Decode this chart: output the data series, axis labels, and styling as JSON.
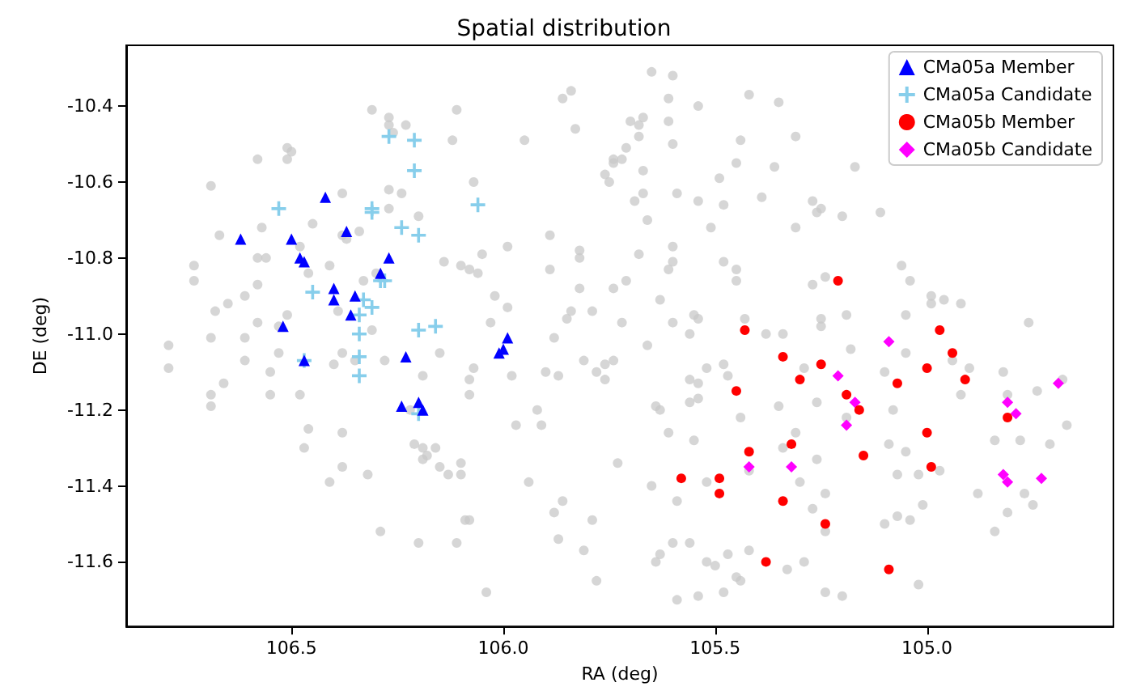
{
  "chart_data": {
    "type": "scatter",
    "title": "Spatial distribution",
    "xlabel": "RA (deg)",
    "ylabel": "DE (deg)",
    "xlim": [
      106.89,
      104.56
    ],
    "ylim": [
      -11.77,
      -10.24
    ],
    "xticks": [
      106.5,
      {
        "value": 106,
        "label": "106.0"
      },
      105.5,
      {
        "value": 105,
        "label": "105.0"
      }
    ],
    "yticks": [
      -10.4,
      -10.6,
      -10.8,
      {
        "value": -11,
        "label": "-11.0"
      },
      -11.2,
      -11.4,
      -11.6
    ],
    "grid": false,
    "legend": "top right",
    "series": [
      {
        "color": "#c8c8c8",
        "marker": "circle",
        "x": [
          106.31,
          106.27,
          106.27,
          106.26,
          106.23,
          106.11,
          106.12,
          106.51,
          106.5,
          106.58,
          106.51,
          106.69,
          106.38,
          106.27,
          106.24,
          106.27,
          106.2,
          106.07,
          106.45,
          106.57,
          106.67,
          106.38,
          106.34,
          106.37,
          106.48,
          106.58,
          106.56,
          106.73,
          106.73,
          106.41,
          106.46,
          106.33,
          106.3,
          106.14,
          106.1,
          106.08,
          106.58,
          106.61,
          106.65,
          106.68,
          106.51,
          106.58,
          106.53,
          106.39,
          106.31,
          106.69,
          106.61,
          106.79,
          106.79,
          106.61,
          106.53,
          106.55,
          106.66,
          106.69,
          106.69,
          106.55,
          106.48,
          106.4,
          106.38,
          106.35,
          106.28,
          106.19,
          106.15,
          106.07,
          106.08,
          106.08,
          106.46,
          106.47,
          106.38,
          106.38,
          106.41,
          106.32,
          106.22,
          106.21,
          106.19,
          106.16,
          106.18,
          106.19,
          106.15,
          106.13,
          106.1,
          106.1,
          106.09,
          106.08,
          106.29,
          106.2,
          106.11,
          105.65,
          105.6,
          105.86,
          105.84,
          105.61,
          105.54,
          105.42,
          105.35,
          105.83,
          105.7,
          105.67,
          105.68,
          105.61,
          105.68,
          105.6,
          105.95,
          105.44,
          105.31,
          105.71,
          105.74,
          105.72,
          105.74,
          105.76,
          105.75,
          105.67,
          105.49,
          105.45,
          105.36,
          105.69,
          105.67,
          105.59,
          105.54,
          105.48,
          105.39,
          105.27,
          105.66,
          105.51,
          105.31,
          105.89,
          105.99,
          106.05,
          105.82,
          105.82,
          105.68,
          105.6,
          105.6,
          105.48,
          105.45,
          105.45,
          105.27,
          105.89,
          106.06,
          105.61,
          105.71,
          105.82,
          105.74,
          106.02,
          105.63,
          105.99,
          105.84,
          105.85,
          105.79,
          105.72,
          105.6,
          105.55,
          105.54,
          105.43,
          105.34,
          106.03,
          105.56,
          105.88,
          105.66,
          105.98,
          105.9,
          105.87,
          105.81,
          105.78,
          105.76,
          105.74,
          105.76,
          105.97,
          105.92,
          105.91,
          105.73,
          105.94,
          105.64,
          105.63,
          105.61,
          105.55,
          105.52,
          105.48,
          105.47,
          105.56,
          105.54,
          105.56,
          105.54,
          105.44,
          105.35,
          105.31,
          105.34,
          105.42,
          105.52,
          105.59,
          105.65,
          105.3,
          105.27,
          105.88,
          105.86,
          105.79,
          105.87,
          105.81,
          105.78,
          106.04,
          105.6,
          105.56,
          105.64,
          105.63,
          105.52,
          105.5,
          105.47,
          105.42,
          105.45,
          105.44,
          105.33,
          105.29,
          105.59,
          105.54,
          105.48,
          105.38,
          105.29,
          105.17,
          105.25,
          105.26,
          105.2,
          105.11,
          105.06,
          105.04,
          105.24,
          104.99,
          104.99,
          104.96,
          104.92,
          105.19,
          105.05,
          105.25,
          105.25,
          104.76,
          105.18,
          105.05,
          104.94,
          104.9,
          105.1,
          104.82,
          104.74,
          104.68,
          104.92,
          104.81,
          105.26,
          105.19,
          105.08,
          104.67,
          104.84,
          104.78,
          104.71,
          105.09,
          105.05,
          105.26,
          105.07,
          105.02,
          104.97,
          104.88,
          104.77,
          104.75,
          105.24,
          105.01,
          105.07,
          105.04,
          105.1,
          104.81,
          104.84,
          105.24,
          105.24,
          105.2,
          105.02
        ],
        "values": [
          -10.41,
          -10.43,
          -10.45,
          -10.47,
          -10.45,
          -10.41,
          -10.49,
          -10.51,
          -10.52,
          -10.54,
          -10.54,
          -10.61,
          -10.63,
          -10.62,
          -10.63,
          -10.67,
          -10.69,
          -10.6,
          -10.71,
          -10.72,
          -10.74,
          -10.74,
          -10.73,
          -10.75,
          -10.77,
          -10.8,
          -10.8,
          -10.82,
          -10.86,
          -10.82,
          -10.84,
          -10.86,
          -10.84,
          -10.81,
          -10.82,
          -10.83,
          -10.87,
          -10.9,
          -10.92,
          -10.94,
          -10.95,
          -10.97,
          -10.98,
          -10.94,
          -10.99,
          -11.01,
          -11.01,
          -11.03,
          -11.09,
          -11.07,
          -11.05,
          -11.1,
          -11.13,
          -11.16,
          -11.19,
          -11.16,
          -11.16,
          -11.08,
          -11.05,
          -11.07,
          -11.07,
          -11.11,
          -11.05,
          -11.09,
          -11.12,
          -11.16,
          -11.25,
          -11.3,
          -11.26,
          -11.35,
          -11.39,
          -11.37,
          -11.2,
          -11.29,
          -11.3,
          -11.3,
          -11.32,
          -11.33,
          -11.35,
          -11.37,
          -11.34,
          -11.37,
          -11.49,
          -11.49,
          -11.52,
          -11.55,
          -11.55,
          -10.31,
          -10.32,
          -10.38,
          -10.36,
          -10.38,
          -10.4,
          -10.37,
          -10.39,
          -10.46,
          -10.44,
          -10.43,
          -10.45,
          -10.44,
          -10.48,
          -10.5,
          -10.49,
          -10.49,
          -10.48,
          -10.51,
          -10.54,
          -10.54,
          -10.55,
          -10.58,
          -10.6,
          -10.57,
          -10.59,
          -10.55,
          -10.56,
          -10.65,
          -10.63,
          -10.63,
          -10.65,
          -10.66,
          -10.64,
          -10.65,
          -10.7,
          -10.72,
          -10.72,
          -10.74,
          -10.77,
          -10.79,
          -10.78,
          -10.8,
          -10.79,
          -10.77,
          -10.81,
          -10.81,
          -10.83,
          -10.86,
          -10.87,
          -10.83,
          -10.84,
          -10.83,
          -10.86,
          -10.88,
          -10.88,
          -10.9,
          -10.91,
          -10.93,
          -10.94,
          -10.96,
          -10.94,
          -10.97,
          -10.97,
          -10.95,
          -10.96,
          -10.96,
          -11.0,
          -10.97,
          -11.0,
          -11.01,
          -11.03,
          -11.11,
          -11.1,
          -11.11,
          -11.07,
          -11.1,
          -11.08,
          -11.07,
          -11.12,
          -11.24,
          -11.2,
          -11.24,
          -11.34,
          -11.39,
          -11.19,
          -11.2,
          -11.26,
          -11.28,
          -11.09,
          -11.08,
          -11.11,
          -11.12,
          -11.13,
          -11.18,
          -11.17,
          -11.22,
          -11.19,
          -11.26,
          -11.3,
          -11.36,
          -11.39,
          -11.44,
          -11.4,
          -11.39,
          -11.46,
          -11.47,
          -11.44,
          -11.49,
          -11.54,
          -11.57,
          -11.65,
          -11.68,
          -11.55,
          -11.55,
          -11.6,
          -11.58,
          -11.6,
          -11.61,
          -11.58,
          -11.57,
          -11.64,
          -11.65,
          -11.62,
          -11.6,
          -11.7,
          -11.69,
          -11.68,
          -11.0,
          -11.09,
          -10.56,
          -10.67,
          -10.68,
          -10.69,
          -10.68,
          -10.82,
          -10.86,
          -10.85,
          -10.9,
          -10.92,
          -10.91,
          -10.92,
          -10.95,
          -10.95,
          -10.96,
          -10.98,
          -10.97,
          -11.04,
          -11.05,
          -11.07,
          -11.09,
          -11.1,
          -11.1,
          -11.15,
          -11.12,
          -11.16,
          -11.16,
          -11.18,
          -11.22,
          -11.2,
          -11.24,
          -11.28,
          -11.28,
          -11.29,
          -11.29,
          -11.31,
          -11.33,
          -11.37,
          -11.37,
          -11.36,
          -11.42,
          -11.42,
          -11.45,
          -11.42,
          -11.45,
          -11.48,
          -11.49,
          -11.5,
          -11.47,
          -11.52,
          -11.52,
          -11.68,
          -11.69,
          -11.66
        ]
      },
      {
        "name": "CMa05a Member",
        "color": "#0000ff",
        "marker": "triangle",
        "x": [
          106.62,
          106.5,
          106.48,
          106.47,
          106.42,
          106.37,
          106.4,
          106.4,
          106.35,
          106.36,
          106.27,
          106.29,
          106.52,
          106.47,
          106.23,
          106.2,
          106.24,
          106.19,
          105.99,
          106.0,
          106.01
        ],
        "values": [
          -10.75,
          -10.75,
          -10.8,
          -10.81,
          -10.64,
          -10.73,
          -10.91,
          -10.88,
          -10.9,
          -10.95,
          -10.8,
          -10.84,
          -10.98,
          -11.07,
          -11.06,
          -11.18,
          -11.19,
          -11.2,
          -11.01,
          -11.04,
          -11.05
        ]
      },
      {
        "name": "CMa05a Candidate",
        "color": "#87ceeb",
        "marker": "cross",
        "x": [
          106.53,
          106.27,
          106.21,
          106.21,
          106.31,
          106.31,
          106.24,
          106.2,
          106.06,
          106.45,
          106.33,
          106.28,
          106.29,
          106.31,
          106.34,
          106.34,
          106.2,
          106.16,
          106.47,
          106.34,
          106.34,
          106.2
        ],
        "values": [
          -10.67,
          -10.48,
          -10.49,
          -10.57,
          -10.67,
          -10.68,
          -10.72,
          -10.74,
          -10.66,
          -10.89,
          -10.91,
          -10.86,
          -10.86,
          -10.93,
          -10.95,
          -11.0,
          -10.99,
          -10.98,
          -11.07,
          -11.06,
          -11.11,
          -11.21
        ]
      },
      {
        "name": "CMa05b Member",
        "color": "#ff0000",
        "marker": "circle",
        "x": [
          105.43,
          105.21,
          104.97,
          105.34,
          105.3,
          105.45,
          105.42,
          105.32,
          105.58,
          105.49,
          105.49,
          105.34,
          105.38,
          105.25,
          104.94,
          105.0,
          105.07,
          104.91,
          105.19,
          105.16,
          104.81,
          105.0,
          105.15,
          104.99,
          105.24,
          105.09
        ],
        "values": [
          -10.99,
          -10.86,
          -10.99,
          -11.06,
          -11.12,
          -11.15,
          -11.31,
          -11.29,
          -11.38,
          -11.38,
          -11.42,
          -11.44,
          -11.6,
          -11.08,
          -11.05,
          -11.09,
          -11.13,
          -11.12,
          -11.16,
          -11.2,
          -11.22,
          -11.26,
          -11.32,
          -11.35,
          -11.5,
          -11.62
        ]
      },
      {
        "name": "CMa05b Candidate",
        "color": "#ff00ff",
        "marker": "diamond",
        "x": [
          105.42,
          105.32,
          105.09,
          105.21,
          105.17,
          105.19,
          104.69,
          104.81,
          104.79,
          104.82,
          104.81,
          104.73
        ],
        "values": [
          -11.35,
          -11.35,
          -11.02,
          -11.11,
          -11.18,
          -11.24,
          -11.13,
          -11.18,
          -11.21,
          -11.37,
          -11.39,
          -11.38
        ]
      }
    ]
  }
}
